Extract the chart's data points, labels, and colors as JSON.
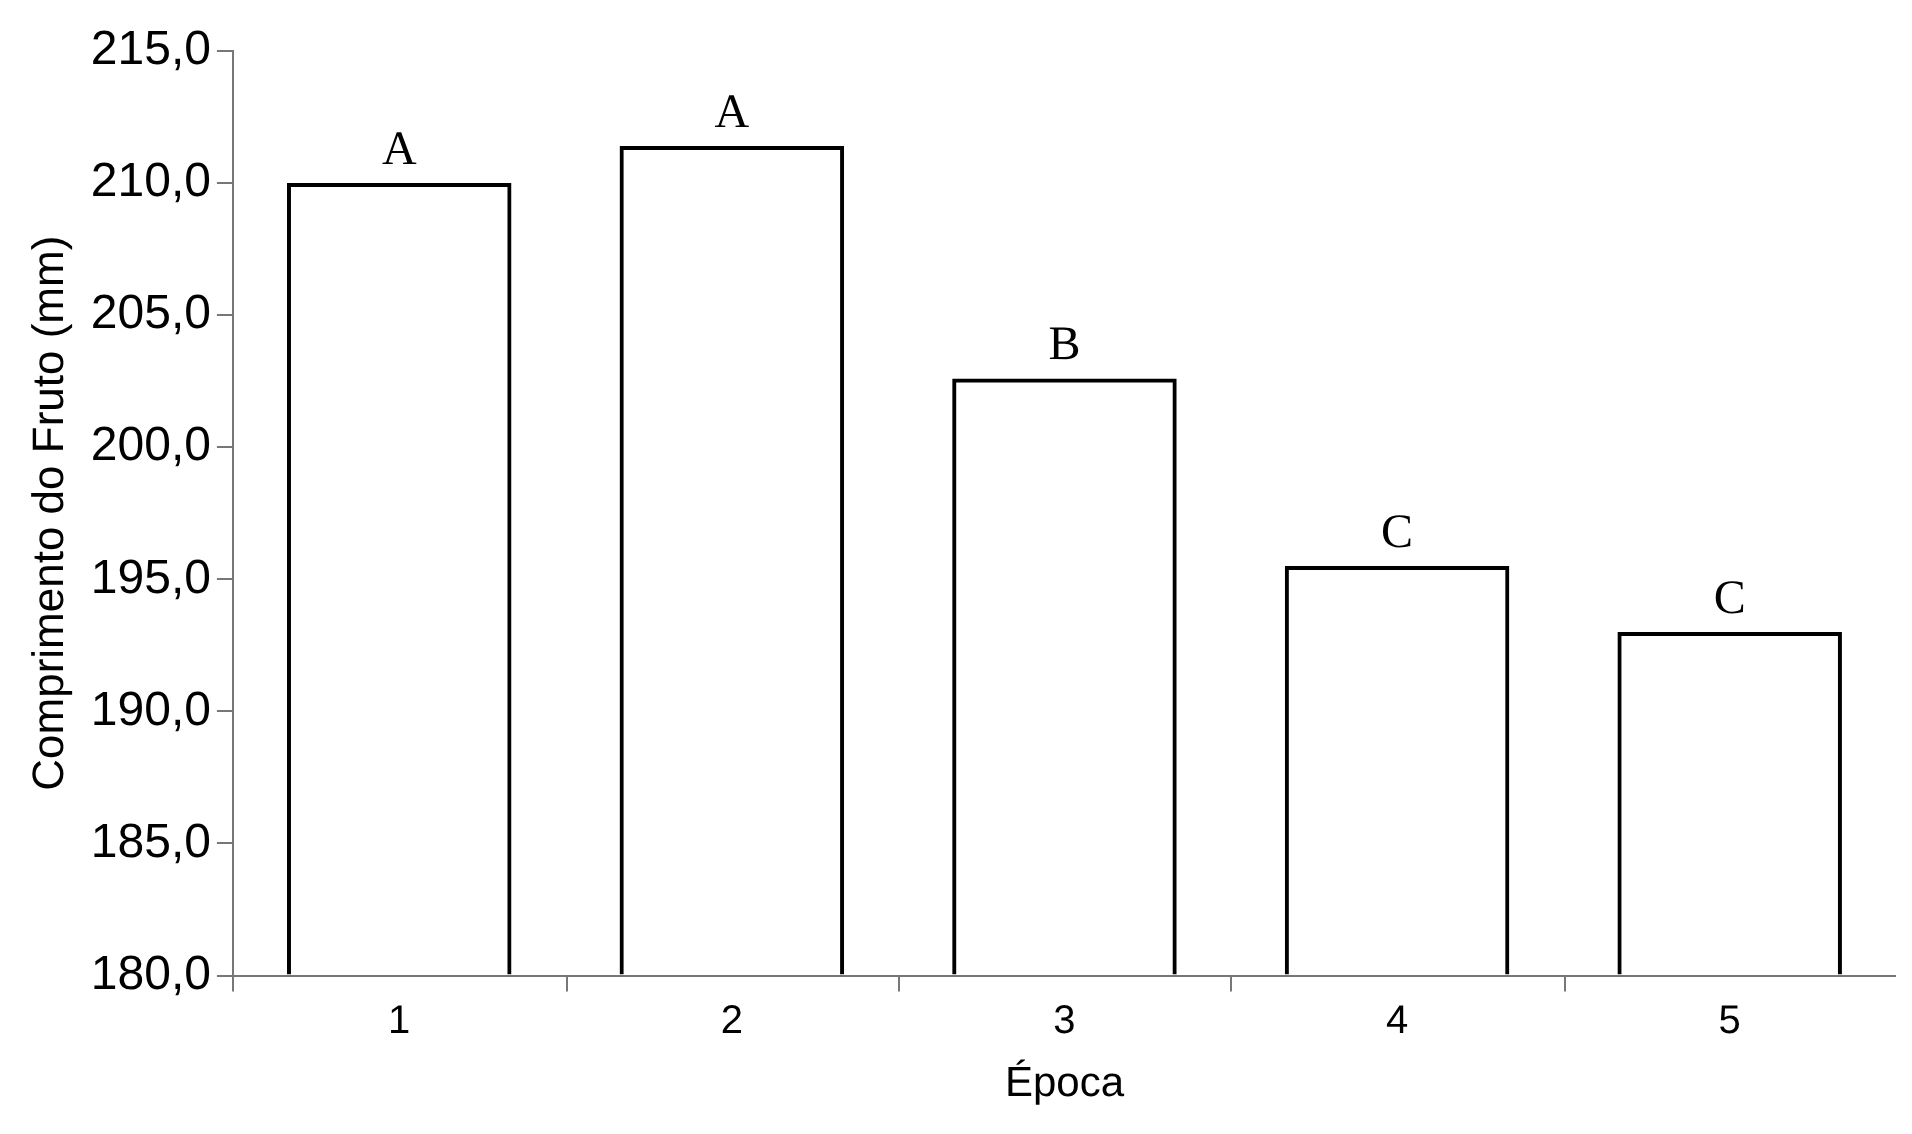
{
  "chart_data": {
    "type": "bar",
    "xlabel": "Época",
    "ylabel": "Comprimento do Fruto (mm)",
    "categories": [
      "1",
      "2",
      "3",
      "4",
      "5"
    ],
    "values": [
      210.0,
      211.4,
      202.6,
      195.5,
      193.0
    ],
    "color": "#000000",
    "ylim": [
      180,
      215
    ],
    "yticks": [
      {
        "value": 180,
        "label": "180,0"
      },
      {
        "value": 185,
        "label": "185,0"
      },
      {
        "value": 190,
        "label": "190,0"
      },
      {
        "value": 195,
        "label": "195,0"
      },
      {
        "value": 200,
        "label": "200,0"
      },
      {
        "value": 205,
        "label": "205,0"
      },
      {
        "value": 210,
        "label": "210,0"
      },
      {
        "value": 215,
        "label": "215,0"
      }
    ],
    "grid": false,
    "legend": false,
    "annotations": [
      {
        "text": "A",
        "x": "1",
        "y": 210.0
      },
      {
        "text": "A",
        "x": "2",
        "y": 211.4
      },
      {
        "text": "B",
        "x": "3",
        "y": 202.6
      },
      {
        "text": "C",
        "x": "4",
        "y": 195.5
      },
      {
        "text": "C",
        "x": "5",
        "y": 193.0
      }
    ]
  }
}
